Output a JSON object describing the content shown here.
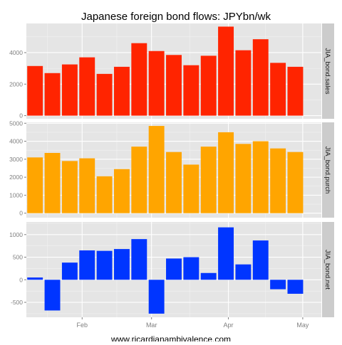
{
  "title": "Japanese foreign bond flows: JPYbn/wk",
  "caption": "www.ricardianambivalence.com",
  "colors": {
    "panel_bg": "#e5e5e5",
    "strip_bg": "#cccccc",
    "grid_major": "#ffffff",
    "grid_minor": "#f2f2f2",
    "tick_label": "#7f7f7f",
    "sales": "#ff2400",
    "purch": "#ffa500",
    "net": "#0035ff"
  },
  "chart_data": {
    "type": "bar",
    "facet": "vertical",
    "x_unit": "week",
    "x_dates": [
      "2013-01-13",
      "2013-01-20",
      "2013-01-27",
      "2013-02-03",
      "2013-02-10",
      "2013-02-17",
      "2013-02-24",
      "2013-03-03",
      "2013-03-10",
      "2013-03-17",
      "2013-03-24",
      "2013-03-31",
      "2013-04-07",
      "2013-04-14",
      "2013-04-21",
      "2013-04-28",
      "2013-05-05"
    ],
    "x_ticks": [
      {
        "date": "2013-02-01",
        "label": "Feb"
      },
      {
        "date": "2013-03-01",
        "label": "Mar"
      },
      {
        "date": "2013-04-01",
        "label": "Apr"
      },
      {
        "date": "2013-05-01",
        "label": "May"
      }
    ],
    "grid": true,
    "panels": [
      {
        "strip": "JIA_bond.sales",
        "color_key": "sales",
        "ylim": [
          -200,
          5850
        ],
        "yticks": [
          0,
          2000,
          4000
        ],
        "values": [
          3150,
          2700,
          3250,
          3700,
          2650,
          3100,
          4600,
          4100,
          3850,
          3200,
          3800,
          5650,
          4150,
          4850,
          3350,
          3100,
          0
        ]
      },
      {
        "strip": "JIA_bond.purch",
        "color_key": "purch",
        "ylim": [
          -250,
          5050
        ],
        "yticks": [
          0,
          1000,
          2000,
          3000,
          4000,
          5000
        ],
        "values": [
          3100,
          3350,
          2900,
          3050,
          2050,
          2450,
          3700,
          4850,
          3400,
          2700,
          3700,
          4500,
          3850,
          4000,
          3600,
          3400,
          0
        ]
      },
      {
        "strip": "JIA_bond.net",
        "color_key": "net",
        "ylim": [
          -830,
          1280
        ],
        "yticks": [
          -500,
          0,
          500,
          1000
        ],
        "values": [
          50,
          -680,
          380,
          650,
          640,
          680,
          900,
          -750,
          470,
          500,
          150,
          1160,
          340,
          870,
          -210,
          -310,
          0
        ]
      }
    ]
  }
}
